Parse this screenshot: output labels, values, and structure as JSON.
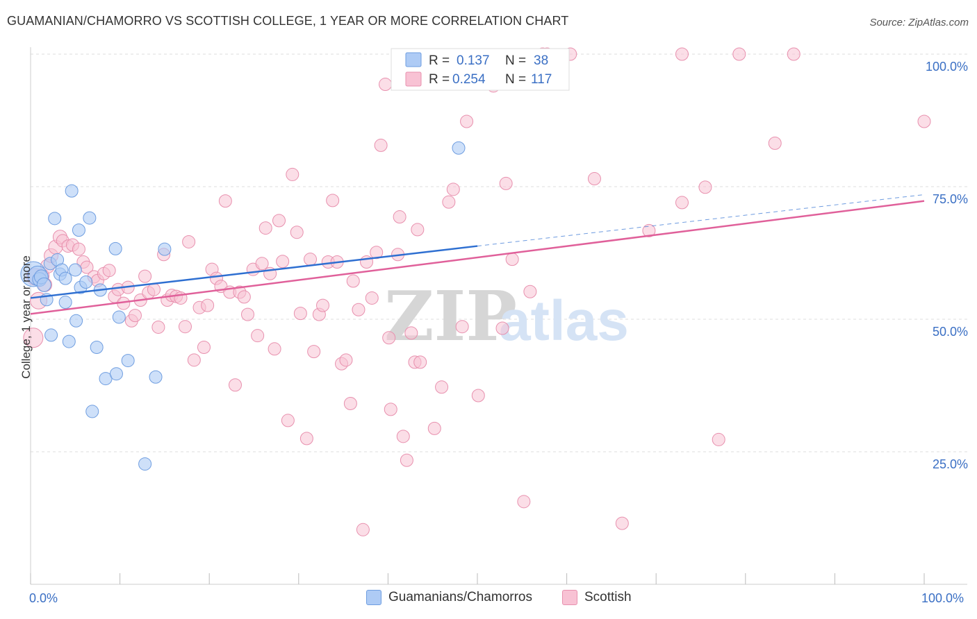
{
  "title": "GUAMANIAN/CHAMORRO VS SCOTTISH COLLEGE, 1 YEAR OR MORE CORRELATION CHART",
  "source": "Source: ZipAtlas.com",
  "watermark": {
    "zip": "ZIP",
    "atlas": "atlas"
  },
  "legend_box": {
    "r_label": "R =",
    "n_label": "N =",
    "rows": [
      {
        "r": "0.137",
        "n": "38"
      },
      {
        "r": "0.254",
        "n": "117"
      }
    ]
  },
  "colors": {
    "blue_fill": "#aecbf5",
    "blue_stroke": "#6e9de0",
    "blue_line": "#2e6fd1",
    "pink_fill": "#f8c2d4",
    "pink_stroke": "#e890ae",
    "pink_line": "#e0609a",
    "axis_text": "#3a6fc4",
    "grid": "#dddddd"
  },
  "chart_data": {
    "type": "scatter",
    "title": "GUAMANIAN/CHAMORRO VS SCOTTISH COLLEGE, 1 YEAR OR MORE CORRELATION CHART",
    "xlabel": "",
    "ylabel": "College, 1 year or more",
    "xlim": [
      0,
      100
    ],
    "ylim": [
      0,
      105
    ],
    "x_tick_labels": [
      "0.0%",
      "100.0%"
    ],
    "y_ticks": [
      25,
      50,
      75,
      100
    ],
    "y_tick_labels": [
      "25.0%",
      "50.0%",
      "75.0%",
      "100.0%"
    ],
    "grid": true,
    "legend_position": "bottom",
    "series": [
      {
        "name": "Guamanians/Chamorros",
        "r": 0.137,
        "n": 38,
        "trend": {
          "x0": 0,
          "y0": 54.0,
          "x1": 50,
          "y1": 63.8,
          "dash_to": 100,
          "dash_y": 73.5
        },
        "points": [
          [
            0.3,
            58.5,
            18
          ],
          [
            0.8,
            58.2,
            14
          ],
          [
            1.0,
            57.5,
            10
          ],
          [
            1.2,
            58.0,
            10
          ],
          [
            1.5,
            56.5,
            10
          ],
          [
            1.8,
            53.7,
            9
          ],
          [
            2.2,
            60.5,
            9
          ],
          [
            2.3,
            47.0,
            9
          ],
          [
            2.7,
            69.0,
            9
          ],
          [
            3.0,
            61.2,
            9
          ],
          [
            3.3,
            58.5,
            9
          ],
          [
            3.5,
            59.3,
            9
          ],
          [
            3.9,
            57.7,
            9
          ],
          [
            3.9,
            53.2,
            9
          ],
          [
            4.3,
            45.8,
            9
          ],
          [
            4.6,
            74.2,
            9
          ],
          [
            5.0,
            59.3,
            9
          ],
          [
            5.1,
            49.7,
            9
          ],
          [
            5.4,
            66.8,
            9
          ],
          [
            5.6,
            56.0,
            9
          ],
          [
            6.2,
            57.0,
            9
          ],
          [
            6.6,
            69.1,
            9
          ],
          [
            6.9,
            32.6,
            9
          ],
          [
            7.4,
            44.7,
            9
          ],
          [
            7.8,
            55.5,
            9
          ],
          [
            8.4,
            38.8,
            9
          ],
          [
            9.5,
            63.3,
            9
          ],
          [
            9.6,
            39.7,
            9
          ],
          [
            9.9,
            50.4,
            9
          ],
          [
            10.9,
            42.2,
            9
          ],
          [
            12.8,
            22.7,
            9
          ],
          [
            14.0,
            39.1,
            9
          ],
          [
            15.0,
            63.2,
            9
          ],
          [
            47.9,
            82.3,
            9
          ]
        ]
      },
      {
        "name": "Scottish",
        "r": 0.254,
        "n": 117,
        "trend": {
          "x0": 0,
          "y0": 51.0,
          "x1": 100,
          "y1": 72.3
        },
        "points": [
          [
            0.3,
            46.5,
            14
          ],
          [
            0.5,
            58.0,
            12
          ],
          [
            0.9,
            53.5,
            12
          ],
          [
            1.3,
            58.2,
            10
          ],
          [
            1.6,
            56.5,
            10
          ],
          [
            1.9,
            60.0,
            10
          ],
          [
            2.3,
            62.0,
            10
          ],
          [
            2.8,
            63.6,
            10
          ],
          [
            3.3,
            65.5,
            10
          ],
          [
            3.6,
            64.8,
            9
          ],
          [
            4.2,
            63.8,
            9
          ],
          [
            4.7,
            64.0,
            9
          ],
          [
            5.4,
            63.2,
            9
          ],
          [
            5.9,
            60.8,
            9
          ],
          [
            6.3,
            59.8,
            9
          ],
          [
            7.1,
            58.0,
            9
          ],
          [
            7.5,
            57.3,
            9
          ],
          [
            8.2,
            58.6,
            9
          ],
          [
            8.8,
            59.2,
            9
          ],
          [
            9.4,
            54.3,
            9
          ],
          [
            9.8,
            55.6,
            9
          ],
          [
            10.4,
            53.0,
            9
          ],
          [
            10.9,
            56.0,
            9
          ],
          [
            11.3,
            49.7,
            9
          ],
          [
            11.7,
            50.7,
            9
          ],
          [
            12.3,
            53.6,
            9
          ],
          [
            12.8,
            58.1,
            9
          ],
          [
            13.2,
            55.0,
            9
          ],
          [
            13.8,
            55.6,
            9
          ],
          [
            14.3,
            48.5,
            9
          ],
          [
            14.9,
            62.2,
            9
          ],
          [
            15.3,
            53.6,
            9
          ],
          [
            15.8,
            54.5,
            9
          ],
          [
            16.3,
            54.3,
            9
          ],
          [
            16.8,
            54.0,
            9
          ],
          [
            17.3,
            48.6,
            9
          ],
          [
            17.7,
            64.6,
            9
          ],
          [
            18.3,
            42.3,
            9
          ],
          [
            18.9,
            52.2,
            9
          ],
          [
            19.4,
            44.7,
            9
          ],
          [
            19.8,
            52.6,
            9
          ],
          [
            20.3,
            59.4,
            9
          ],
          [
            20.8,
            57.7,
            9
          ],
          [
            21.3,
            56.2,
            9
          ],
          [
            21.8,
            72.3,
            9
          ],
          [
            22.3,
            55.1,
            9
          ],
          [
            22.9,
            37.6,
            9
          ],
          [
            23.4,
            55.1,
            9
          ],
          [
            23.9,
            54.2,
            9
          ],
          [
            24.3,
            50.9,
            9
          ],
          [
            24.9,
            59.4,
            9
          ],
          [
            25.4,
            46.9,
            9
          ],
          [
            25.9,
            60.5,
            9
          ],
          [
            26.3,
            67.2,
            9
          ],
          [
            26.8,
            58.6,
            9
          ],
          [
            27.3,
            44.4,
            9
          ],
          [
            27.8,
            68.6,
            9
          ],
          [
            28.2,
            60.9,
            9
          ],
          [
            28.8,
            30.9,
            9
          ],
          [
            29.3,
            77.3,
            9
          ],
          [
            29.8,
            66.4,
            9
          ],
          [
            30.2,
            51.1,
            9
          ],
          [
            30.9,
            27.5,
            9
          ],
          [
            31.3,
            61.3,
            9
          ],
          [
            31.7,
            43.9,
            9
          ],
          [
            32.3,
            50.9,
            9
          ],
          [
            32.7,
            52.6,
            9
          ],
          [
            33.3,
            60.8,
            9
          ],
          [
            33.8,
            72.4,
            9
          ],
          [
            34.3,
            60.8,
            9
          ],
          [
            34.8,
            41.6,
            9
          ],
          [
            35.3,
            42.3,
            9
          ],
          [
            35.8,
            34.1,
            9
          ],
          [
            36.1,
            57.2,
            9
          ],
          [
            36.7,
            51.8,
            9
          ],
          [
            37.2,
            10.3,
            9
          ],
          [
            37.6,
            60.8,
            9
          ],
          [
            38.2,
            54.0,
            9
          ],
          [
            38.7,
            62.6,
            9
          ],
          [
            39.2,
            82.8,
            9
          ],
          [
            39.7,
            94.3,
            9
          ],
          [
            40.1,
            46.5,
            9
          ],
          [
            40.3,
            33.0,
            9
          ],
          [
            41.1,
            62.2,
            9
          ],
          [
            41.3,
            69.3,
            9
          ],
          [
            41.7,
            27.9,
            9
          ],
          [
            42.1,
            23.4,
            9
          ],
          [
            42.6,
            47.4,
            9
          ],
          [
            43.0,
            41.9,
            9
          ],
          [
            43.3,
            66.9,
            9
          ],
          [
            43.6,
            41.9,
            9
          ],
          [
            45.2,
            29.4,
            9
          ],
          [
            46.0,
            37.2,
            9
          ],
          [
            46.8,
            72.1,
            9
          ],
          [
            47.3,
            74.5,
            9
          ],
          [
            48.3,
            48.6,
            9
          ],
          [
            48.8,
            87.3,
            9
          ],
          [
            50.1,
            35.6,
            9
          ],
          [
            51.8,
            94.0,
            9
          ],
          [
            52.8,
            48.3,
            9
          ],
          [
            53.2,
            75.6,
            9
          ],
          [
            53.9,
            61.3,
            9
          ],
          [
            55.2,
            15.6,
            9
          ],
          [
            55.9,
            55.2,
            9
          ],
          [
            57.3,
            100.0,
            9
          ],
          [
            57.8,
            100.0,
            9
          ],
          [
            60.4,
            100.0,
            9
          ],
          [
            63.1,
            76.5,
            9
          ],
          [
            66.2,
            11.5,
            9
          ],
          [
            69.2,
            66.7,
            9
          ],
          [
            72.9,
            100.0,
            9
          ],
          [
            72.9,
            72.0,
            9
          ],
          [
            75.5,
            74.9,
            9
          ],
          [
            77.0,
            27.3,
            9
          ],
          [
            79.3,
            100.0,
            9
          ],
          [
            83.3,
            83.2,
            9
          ],
          [
            85.4,
            100.0,
            9
          ],
          [
            100.0,
            87.3,
            9
          ]
        ]
      }
    ]
  },
  "axis_labels": {
    "x_left": "0.0%",
    "x_right": "100.0%"
  },
  "bottom_legend": [
    {
      "label": "Guamanians/Chamorros"
    },
    {
      "label": "Scottish"
    }
  ]
}
